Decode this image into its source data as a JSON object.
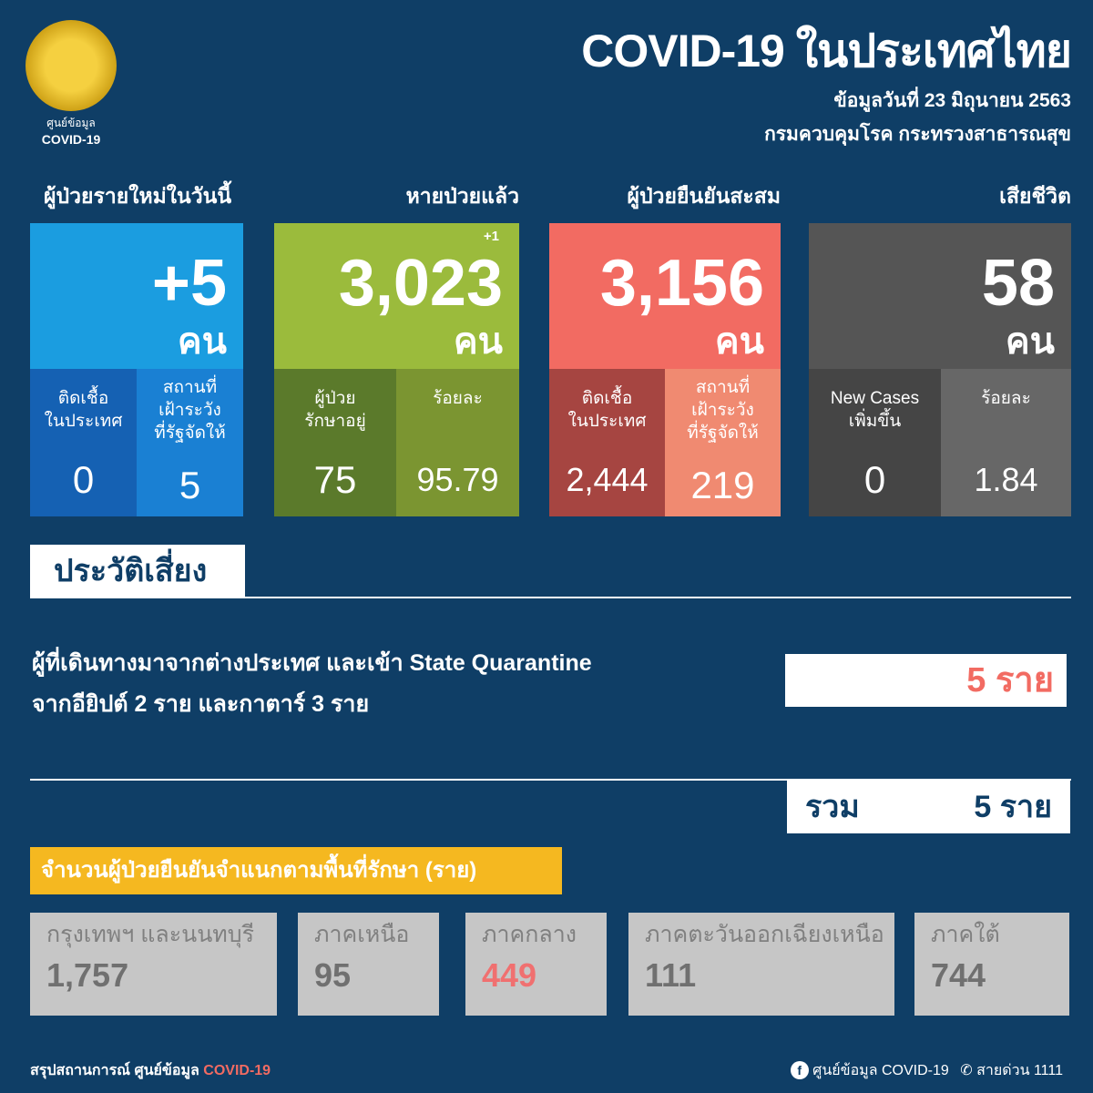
{
  "logo": {
    "line1": "ศูนย์ข้อมูล",
    "line2": "COVID-19"
  },
  "header": {
    "title": "COVID-19 ในประเทศไทย",
    "date": "ข้อมูลวันที่ 23 มิถุนายน 2563",
    "org": "กรมควบคุมโรค กระทรวงสาธารณสุข"
  },
  "cards": [
    {
      "caption": "ผู้ป่วยรายใหม่ในวันนี้",
      "value": "+5",
      "unit": "คน",
      "color": "#1b9de0",
      "sub": [
        {
          "label": "ติดเชื้อ\nในประเทศ",
          "value": "0",
          "color": "#1561b3"
        },
        {
          "label": "สถานที่\nเฝ้าระวัง\nที่รัฐจัดให้",
          "value": "5",
          "color": "#1a80d3"
        }
      ]
    },
    {
      "caption": "หายป่วยแล้ว",
      "value": "3,023",
      "unit": "คน",
      "delta": "+1",
      "color": "#9bbb3c",
      "sub": [
        {
          "label": "ผู้ป่วย\nรักษาอยู่",
          "value": "75",
          "color": "#5b7a2b"
        },
        {
          "label": "ร้อยละ",
          "value": "95.79",
          "color": "#7b9531"
        }
      ]
    },
    {
      "caption": "ผู้ป่วยยืนยันสะสม",
      "value": "3,156",
      "unit": "คน",
      "color": "#f26b62",
      "sub": [
        {
          "label": "ติดเชื้อ\nในประเทศ",
          "value": "2,444",
          "color": "#a64541"
        },
        {
          "label": "สถานที่\nเฝ้าระวัง\nที่รัฐจัดให้",
          "value": "219",
          "color": "#f08a71"
        }
      ]
    },
    {
      "caption": "เสียชีวิต",
      "value": "58",
      "unit": "คน",
      "color": "#555555",
      "sub": [
        {
          "label": "New Cases\nเพิ่มขึ้น",
          "value": "0",
          "color": "#454545"
        },
        {
          "label": "ร้อยละ",
          "value": "1.84",
          "color": "#676767"
        }
      ]
    }
  ],
  "risk": {
    "tab": "ประวัติเสี่ยง",
    "line1": "ผู้ที่เดินทางมาจากต่างประเทศ และเข้า State Quarantine",
    "line2": "จากอียิปต์ 2 ราย และกาตาร์ 3 ราย",
    "count": "5 ราย",
    "total_label": "รวม",
    "total_value": "5 ราย"
  },
  "regions": {
    "title": "จำนวนผู้ป่วยยืนยันจำแนกตามพื้นที่รักษา (ราย)",
    "items": [
      {
        "name": "กรุงเทพฯ และนนทบุรี",
        "value": "1,757"
      },
      {
        "name": "ภาคเหนือ",
        "value": "95"
      },
      {
        "name": "ภาคกลาง",
        "value": "449",
        "highlight": true
      },
      {
        "name": "ภาคตะวันออกเฉียงเหนือ",
        "value": "111"
      },
      {
        "name": "ภาคใต้",
        "value": "744"
      }
    ]
  },
  "footer": {
    "left": "สรุปสถานการณ์ ศูนย์ข้อมูล",
    "left_accent": "COVID-19",
    "facebook": "ศูนย์ข้อมูล COVID-19",
    "hotline": "สายด่วน 1111",
    "facebook_icon": "facebook-icon",
    "phone_icon": "phone-icon"
  },
  "colors": {
    "background": "#0f3e66",
    "accent_red": "#f26b62",
    "highlight_yellow": "#f5b820"
  }
}
